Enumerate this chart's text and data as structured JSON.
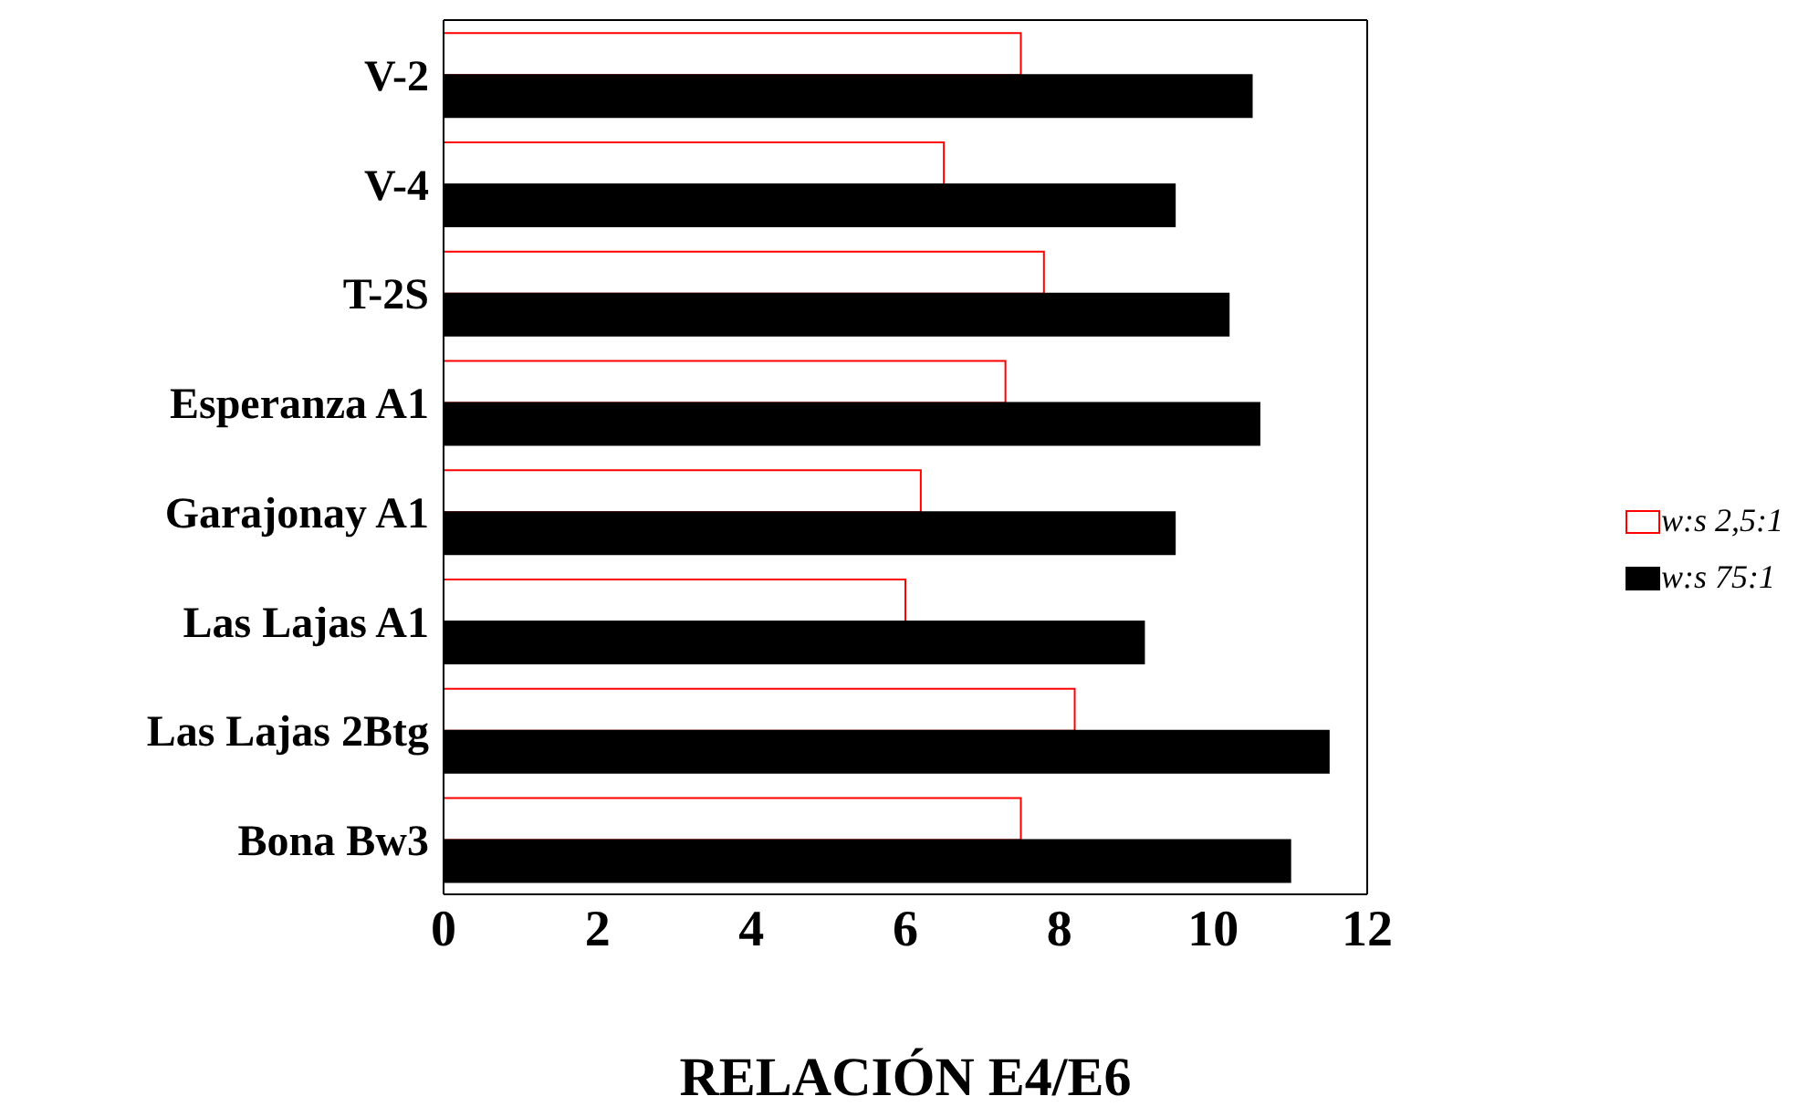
{
  "chart_data": {
    "type": "bar",
    "orientation": "horizontal",
    "xlabel": "RELACIÓN E4/E6",
    "categories": [
      "V-2",
      "V-4",
      "T-2S",
      "Esperanza A1",
      "Garajonay A1",
      "Las Lajas A1",
      "Las Lajas 2Btg",
      "Bona Bw3"
    ],
    "series": [
      {
        "name": "w:s 2,5:1",
        "color": "#ff0000",
        "values": [
          7.5,
          6.5,
          7.8,
          7.3,
          6.2,
          6.0,
          8.2,
          7.5
        ]
      },
      {
        "name": "w:s 75:1",
        "color": "#000000",
        "values": [
          10.5,
          9.5,
          10.2,
          10.6,
          9.5,
          9.1,
          11.5,
          11.0
        ]
      }
    ],
    "xlim": [
      0,
      12
    ],
    "xticks": [
      0,
      2,
      4,
      6,
      8,
      10,
      12
    ],
    "grid": false,
    "legend": "right"
  }
}
